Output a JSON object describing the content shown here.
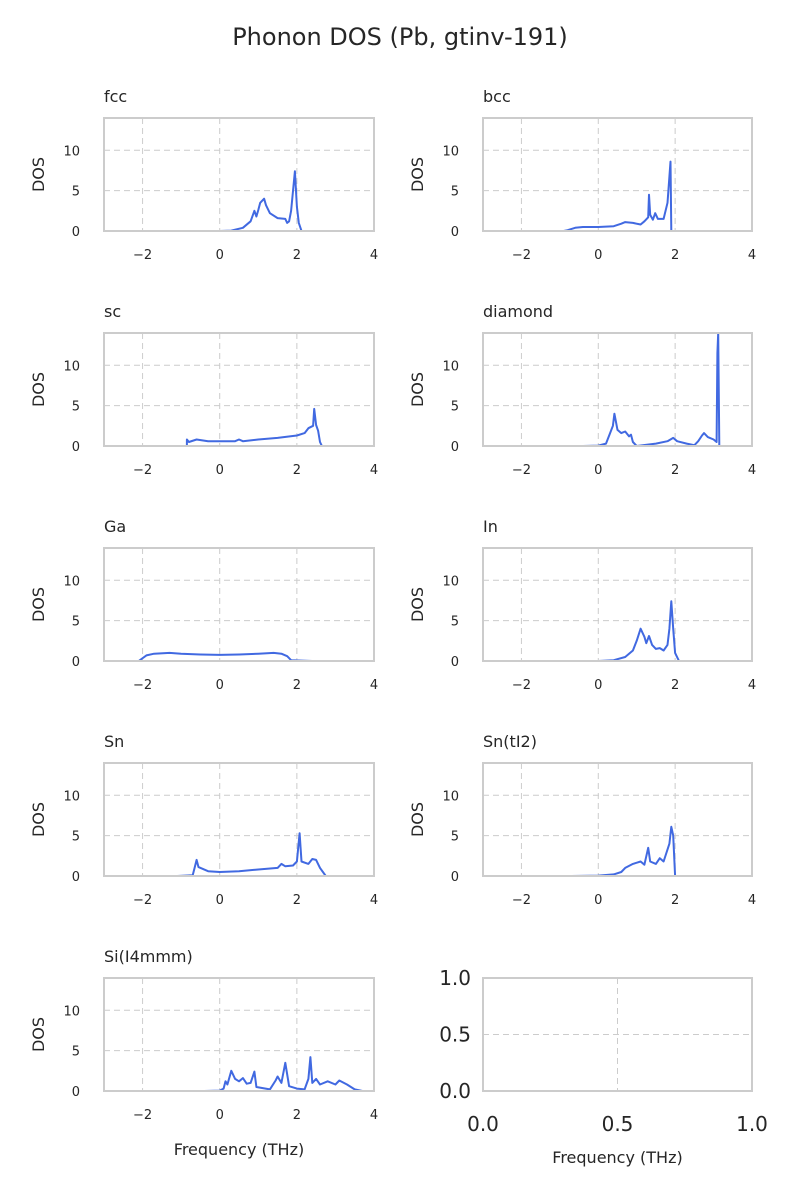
{
  "title": "Phonon DOS (Pb, gtinv-191)",
  "line_color": "#4169e1",
  "chart_data": [
    {
      "type": "line",
      "title": "fcc",
      "ylabel": "DOS",
      "xlim": [
        -3,
        4
      ],
      "ylim": [
        0,
        14
      ],
      "xticks": [
        "−2",
        "0",
        "2",
        "4"
      ],
      "yticks": [
        "0",
        "5",
        "10"
      ],
      "grid": true,
      "points": [
        [
          -0.0,
          0
        ],
        [
          0.3,
          0.05
        ],
        [
          0.6,
          0.4
        ],
        [
          0.8,
          1.2
        ],
        [
          0.9,
          2.5
        ],
        [
          0.95,
          1.8
        ],
        [
          1.0,
          2.6
        ],
        [
          1.05,
          3.5
        ],
        [
          1.15,
          4.0
        ],
        [
          1.2,
          3.2
        ],
        [
          1.3,
          2.2
        ],
        [
          1.5,
          1.6
        ],
        [
          1.7,
          1.5
        ],
        [
          1.75,
          1.0
        ],
        [
          1.8,
          1.2
        ],
        [
          1.85,
          2.5
        ],
        [
          1.95,
          7.4
        ],
        [
          2.0,
          3
        ],
        [
          2.05,
          1.0
        ],
        [
          2.1,
          0.3
        ],
        [
          2.12,
          0
        ],
        [
          2.3,
          0
        ]
      ]
    },
    {
      "type": "line",
      "title": "bcc",
      "ylabel": "DOS",
      "xlim": [
        -3,
        4
      ],
      "ylim": [
        0,
        14
      ],
      "xticks": [
        "−2",
        "0",
        "2",
        "4"
      ],
      "yticks": [
        "0",
        "5",
        "10"
      ],
      "grid": true,
      "points": [
        [
          -0.9,
          0
        ],
        [
          -0.8,
          0.1
        ],
        [
          -0.6,
          0.4
        ],
        [
          -0.4,
          0.5
        ],
        [
          0,
          0.5
        ],
        [
          0.4,
          0.6
        ],
        [
          0.6,
          0.9
        ],
        [
          0.7,
          1.1
        ],
        [
          0.9,
          1.0
        ],
        [
          1.1,
          0.8
        ],
        [
          1.2,
          1.2
        ],
        [
          1.3,
          1.7
        ],
        [
          1.32,
          4.5
        ],
        [
          1.35,
          2
        ],
        [
          1.42,
          1.4
        ],
        [
          1.48,
          2.2
        ],
        [
          1.55,
          1.5
        ],
        [
          1.7,
          1.5
        ],
        [
          1.8,
          3.5
        ],
        [
          1.88,
          8.6
        ],
        [
          1.9,
          0
        ],
        [
          2.1,
          0
        ]
      ]
    },
    {
      "type": "line",
      "title": "sc",
      "ylabel": "DOS",
      "xlim": [
        -3,
        4
      ],
      "ylim": [
        0,
        14
      ],
      "xticks": [
        "−2",
        "0",
        "2",
        "4"
      ],
      "yticks": [
        "0",
        "5",
        "10"
      ],
      "grid": true,
      "points": [
        [
          -1.2,
          0
        ],
        [
          -0.85,
          0
        ],
        [
          -0.85,
          0.8
        ],
        [
          -0.8,
          0.5
        ],
        [
          -0.6,
          0.8
        ],
        [
          -0.3,
          0.6
        ],
        [
          0,
          0.6
        ],
        [
          0.4,
          0.6
        ],
        [
          0.5,
          0.8
        ],
        [
          0.6,
          0.6
        ],
        [
          1.0,
          0.8
        ],
        [
          1.5,
          1.0
        ],
        [
          2.0,
          1.3
        ],
        [
          2.2,
          1.6
        ],
        [
          2.3,
          2.2
        ],
        [
          2.42,
          2.5
        ],
        [
          2.45,
          4.6
        ],
        [
          2.5,
          2.6
        ],
        [
          2.55,
          1.9
        ],
        [
          2.6,
          0.5
        ],
        [
          2.65,
          0
        ],
        [
          2.9,
          0
        ]
      ]
    },
    {
      "type": "line",
      "title": "diamond",
      "ylabel": "DOS",
      "xlim": [
        -3,
        4
      ],
      "ylim": [
        0,
        14
      ],
      "xticks": [
        "−2",
        "0",
        "2",
        "4"
      ],
      "yticks": [
        "0",
        "5",
        "10"
      ],
      "grid": true,
      "points": [
        [
          -0.4,
          0
        ],
        [
          0,
          0.05
        ],
        [
          0.2,
          0.3
        ],
        [
          0.3,
          1.5
        ],
        [
          0.38,
          2.5
        ],
        [
          0.42,
          4.0
        ],
        [
          0.5,
          2.0
        ],
        [
          0.6,
          1.6
        ],
        [
          0.7,
          1.8
        ],
        [
          0.8,
          1.2
        ],
        [
          0.85,
          1.4
        ],
        [
          0.9,
          0.5
        ],
        [
          1.0,
          0
        ],
        [
          1.5,
          0.3
        ],
        [
          1.8,
          0.6
        ],
        [
          1.95,
          1.0
        ],
        [
          2.05,
          0.6
        ],
        [
          2.3,
          0.3
        ],
        [
          2.5,
          0.1
        ],
        [
          2.6,
          0.6
        ],
        [
          2.7,
          1.3
        ],
        [
          2.75,
          1.6
        ],
        [
          2.85,
          1.1
        ],
        [
          3.0,
          0.8
        ],
        [
          3.08,
          0.5
        ],
        [
          3.1,
          11.5
        ],
        [
          3.12,
          14
        ],
        [
          3.15,
          0
        ],
        [
          3.5,
          0
        ]
      ]
    },
    {
      "type": "line",
      "title": "Ga",
      "ylabel": "DOS",
      "xlim": [
        -3,
        4
      ],
      "ylim": [
        0,
        14
      ],
      "xticks": [
        "−2",
        "0",
        "2",
        "4"
      ],
      "yticks": [
        "0",
        "5",
        "10"
      ],
      "grid": true,
      "points": [
        [
          -2.4,
          0
        ],
        [
          -2.1,
          0
        ],
        [
          -1.9,
          0.7
        ],
        [
          -1.7,
          0.9
        ],
        [
          -1.3,
          1.0
        ],
        [
          -1,
          0.9
        ],
        [
          -0.5,
          0.8
        ],
        [
          0,
          0.75
        ],
        [
          0.5,
          0.8
        ],
        [
          1,
          0.9
        ],
        [
          1.4,
          1.0
        ],
        [
          1.6,
          0.9
        ],
        [
          1.75,
          0.6
        ],
        [
          1.85,
          0.1
        ],
        [
          2.4,
          0
        ]
      ]
    },
    {
      "type": "line",
      "title": "In",
      "ylabel": "DOS",
      "xlim": [
        -3,
        4
      ],
      "ylim": [
        0,
        14
      ],
      "xticks": [
        "−2",
        "0",
        "2",
        "4"
      ],
      "yticks": [
        "0",
        "5",
        "10"
      ],
      "grid": true,
      "points": [
        [
          0,
          0
        ],
        [
          0.4,
          0.1
        ],
        [
          0.7,
          0.5
        ],
        [
          0.9,
          1.3
        ],
        [
          1.0,
          2.5
        ],
        [
          1.1,
          4.0
        ],
        [
          1.2,
          3.0
        ],
        [
          1.25,
          2.2
        ],
        [
          1.32,
          3.1
        ],
        [
          1.4,
          2.0
        ],
        [
          1.5,
          1.5
        ],
        [
          1.6,
          1.6
        ],
        [
          1.7,
          1.3
        ],
        [
          1.8,
          2.0
        ],
        [
          1.85,
          4
        ],
        [
          1.9,
          7.4
        ],
        [
          1.95,
          4
        ],
        [
          2.0,
          1.0
        ],
        [
          2.1,
          0
        ],
        [
          2.2,
          0
        ]
      ]
    },
    {
      "type": "line",
      "title": "Sn",
      "ylabel": "DOS",
      "xlim": [
        -3,
        4
      ],
      "ylim": [
        0,
        14
      ],
      "xticks": [
        "−2",
        "0",
        "2",
        "4"
      ],
      "yticks": [
        "0",
        "5",
        "10"
      ],
      "grid": true,
      "points": [
        [
          -1.1,
          0
        ],
        [
          -0.7,
          0.1
        ],
        [
          -0.65,
          1.0
        ],
        [
          -0.6,
          2.0
        ],
        [
          -0.55,
          1.1
        ],
        [
          -0.3,
          0.6
        ],
        [
          0,
          0.5
        ],
        [
          0.5,
          0.6
        ],
        [
          1,
          0.8
        ],
        [
          1.5,
          1.0
        ],
        [
          1.6,
          1.5
        ],
        [
          1.7,
          1.2
        ],
        [
          1.9,
          1.3
        ],
        [
          2.0,
          1.8
        ],
        [
          2.07,
          5.3
        ],
        [
          2.12,
          1.8
        ],
        [
          2.3,
          1.5
        ],
        [
          2.4,
          2.1
        ],
        [
          2.5,
          2.0
        ],
        [
          2.6,
          1.0
        ],
        [
          2.75,
          0
        ],
        [
          3.0,
          0
        ]
      ]
    },
    {
      "type": "line",
      "title": "Sn(tI2)",
      "ylabel": "DOS",
      "xlim": [
        -3,
        4
      ],
      "ylim": [
        0,
        14
      ],
      "xticks": [
        "−2",
        "0",
        "2",
        "4"
      ],
      "yticks": [
        "0",
        "5",
        "10"
      ],
      "grid": true,
      "points": [
        [
          -0.7,
          0
        ],
        [
          0,
          0.05
        ],
        [
          0.4,
          0.2
        ],
        [
          0.6,
          0.5
        ],
        [
          0.7,
          1.0
        ],
        [
          0.9,
          1.5
        ],
        [
          1.1,
          1.8
        ],
        [
          1.2,
          1.4
        ],
        [
          1.3,
          3.5
        ],
        [
          1.35,
          1.8
        ],
        [
          1.5,
          1.5
        ],
        [
          1.6,
          2.2
        ],
        [
          1.7,
          1.8
        ],
        [
          1.85,
          4.0
        ],
        [
          1.9,
          6.1
        ],
        [
          1.95,
          5.0
        ],
        [
          2.0,
          0
        ],
        [
          2.3,
          0
        ]
      ]
    },
    {
      "type": "line",
      "title": "Si(I4mmm)",
      "ylabel": "DOS",
      "xlabel": "Frequency (THz)",
      "xlim": [
        -3,
        4
      ],
      "ylim": [
        0,
        14
      ],
      "xticks": [
        "−2",
        "0",
        "2",
        "4"
      ],
      "yticks": [
        "0",
        "5",
        "10"
      ],
      "grid": true,
      "points": [
        [
          -0.4,
          0
        ],
        [
          0,
          0.05
        ],
        [
          0.1,
          0.3
        ],
        [
          0.15,
          1.2
        ],
        [
          0.2,
          0.8
        ],
        [
          0.3,
          2.5
        ],
        [
          0.4,
          1.5
        ],
        [
          0.5,
          1.2
        ],
        [
          0.6,
          1.6
        ],
        [
          0.7,
          0.9
        ],
        [
          0.8,
          1.0
        ],
        [
          0.9,
          2.4
        ],
        [
          0.95,
          0.5
        ],
        [
          1.3,
          0.2
        ],
        [
          1.45,
          1.3
        ],
        [
          1.5,
          1.8
        ],
        [
          1.6,
          1.0
        ],
        [
          1.7,
          3.5
        ],
        [
          1.8,
          0.6
        ],
        [
          2.0,
          0.3
        ],
        [
          2.2,
          0.2
        ],
        [
          2.3,
          1.5
        ],
        [
          2.35,
          4.2
        ],
        [
          2.4,
          1.0
        ],
        [
          2.5,
          1.5
        ],
        [
          2.6,
          0.8
        ],
        [
          2.8,
          1.2
        ],
        [
          3.0,
          0.8
        ],
        [
          3.1,
          1.3
        ],
        [
          3.3,
          0.8
        ],
        [
          3.5,
          0.2
        ],
        [
          3.7,
          0
        ]
      ]
    },
    {
      "type": "line",
      "title": "",
      "xlabel": "Frequency (THz)",
      "xlim": [
        0,
        1
      ],
      "ylim": [
        0,
        1
      ],
      "xticks": [
        "0.0",
        "0.5",
        "1.0"
      ],
      "yticks": [
        "0.0",
        "0.5",
        "1.0"
      ],
      "grid": true,
      "points": []
    }
  ]
}
